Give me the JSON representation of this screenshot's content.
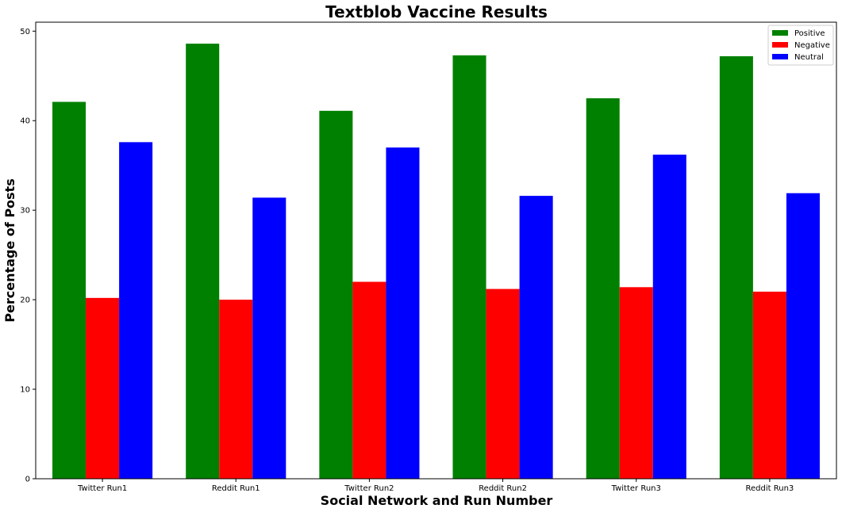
{
  "chart_data": {
    "type": "bar",
    "title": "Textblob Vaccine Results",
    "xlabel": "Social Network and Run Number",
    "ylabel": "Percentage of Posts",
    "categories": [
      "Twitter Run1",
      "Reddit Run1",
      "Twitter Run2",
      "Reddit Run2",
      "Twitter Run3",
      "Reddit Run3"
    ],
    "series": [
      {
        "name": "Positive",
        "color": "#008000",
        "values": [
          42.1,
          48.6,
          41.1,
          47.3,
          42.5,
          47.2
        ]
      },
      {
        "name": "Negative",
        "color": "#ff0000",
        "values": [
          20.2,
          20.0,
          22.0,
          21.2,
          21.4,
          20.9
        ]
      },
      {
        "name": "Neutral",
        "color": "#0000ff",
        "values": [
          37.6,
          31.4,
          37.0,
          31.6,
          36.2,
          31.9
        ]
      }
    ],
    "ylim": [
      0,
      51
    ],
    "yticks": [
      "0",
      "10",
      "20",
      "30",
      "40",
      "50"
    ],
    "grid": false,
    "legend": "top-right"
  }
}
